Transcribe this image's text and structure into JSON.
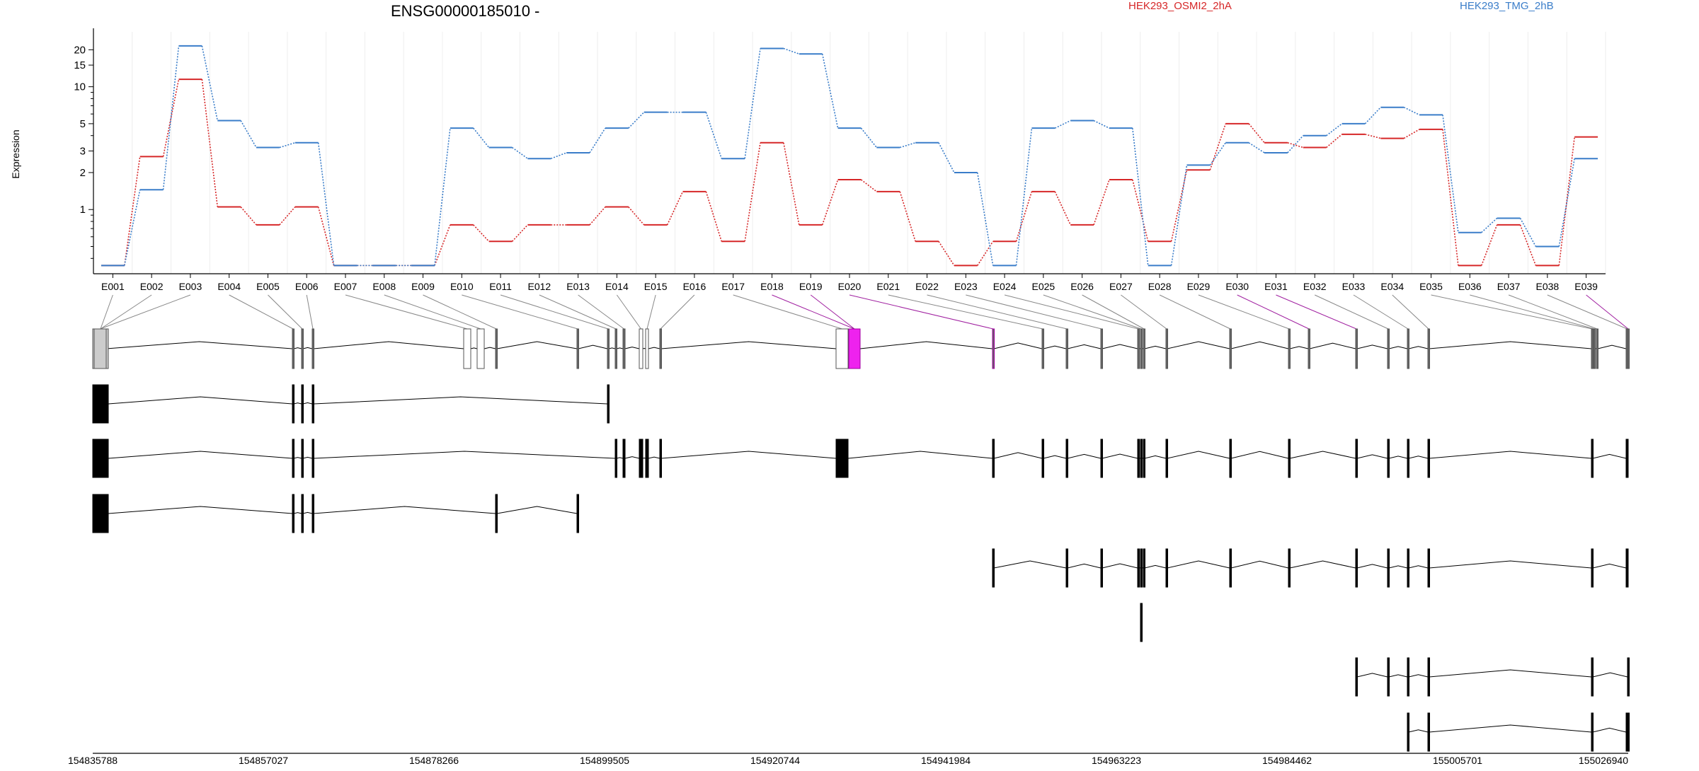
{
  "chart_data": {
    "type": "line",
    "title": "ENSG00000185010 -",
    "ylabel": "Expression",
    "xlabel": "",
    "yscale": "log",
    "yticks": [
      1,
      2,
      3,
      5,
      10,
      15,
      20
    ],
    "ylim": [
      0.3,
      28
    ],
    "grid": true,
    "legend_placement": "top-right",
    "categories": [
      "E001",
      "E002",
      "E003",
      "E004",
      "E005",
      "E006",
      "E007",
      "E008",
      "E009",
      "E010",
      "E011",
      "E012",
      "E013",
      "E014",
      "E015",
      "E016",
      "E017",
      "E018",
      "E019",
      "E020",
      "E021",
      "E022",
      "E023",
      "E024",
      "E025",
      "E026",
      "E027",
      "E028",
      "E029",
      "E030",
      "E031",
      "E032",
      "E033",
      "E034",
      "E035",
      "E036",
      "E037",
      "E038",
      "E039"
    ],
    "series": [
      {
        "name": "HEK293_OSMI2_2hA",
        "color": "#d62728",
        "values": [
          0.35,
          2.7,
          11.5,
          1.05,
          0.75,
          1.05,
          0.35,
          0.35,
          0.35,
          0.75,
          0.55,
          0.75,
          0.75,
          1.05,
          0.75,
          1.4,
          0.55,
          3.5,
          0.75,
          1.75,
          1.4,
          0.55,
          0.35,
          0.55,
          1.4,
          0.75,
          1.75,
          0.55,
          2.1,
          5.0,
          3.5,
          3.2,
          4.1,
          3.8,
          4.5,
          0.35,
          0.75,
          0.35,
          3.9
        ]
      },
      {
        "name": "HEK293_TMG_2hB",
        "color": "#3a7dc9",
        "values": [
          0.35,
          1.45,
          21.5,
          5.3,
          3.2,
          3.5,
          0.35,
          0.35,
          0.35,
          4.6,
          3.2,
          2.6,
          2.9,
          4.6,
          6.2,
          6.2,
          2.6,
          20.5,
          18.5,
          4.6,
          3.2,
          3.5,
          2.0,
          0.35,
          4.6,
          5.3,
          4.6,
          0.35,
          2.3,
          3.5,
          2.9,
          4.0,
          5.0,
          6.8,
          5.9,
          0.65,
          0.85,
          0.5,
          2.6
        ]
      }
    ],
    "genome_coordinates": [
      "154835788",
      "154857027",
      "154878266",
      "154899505",
      "154920744",
      "154941984",
      "154963223",
      "154984462",
      "155005701",
      "155026940"
    ],
    "highlighted_exon": "E020",
    "transcripts": [
      {
        "exons": [
          "E001",
          "E002",
          "E003",
          "E004",
          "E005",
          "E006",
          "E007",
          "E008",
          "E009",
          "E010",
          "E011",
          "E012",
          "E013",
          "E014",
          "E015",
          "E016",
          "E017",
          "E018",
          "E019",
          "E020",
          "E021",
          "E022",
          "E023",
          "E024",
          "E025",
          "E026",
          "E027",
          "E028",
          "E029",
          "E030",
          "E031",
          "E032",
          "E033",
          "E034",
          "E035",
          "E036",
          "E037",
          "E038",
          "E039"
        ]
      },
      {
        "exons": [
          "E002",
          "E004",
          "E005",
          "E006",
          "E011"
        ]
      },
      {
        "exons": [
          "E002",
          "E004",
          "E005",
          "E006",
          "E012",
          "E013",
          "E014",
          "E015",
          "E016",
          "E017",
          "E020",
          "E021",
          "E022",
          "E023",
          "E024",
          "E025",
          "E026",
          "E027",
          "E028",
          "E029",
          "E031",
          "E032",
          "E033",
          "E034",
          "E035",
          "E038"
        ]
      },
      {
        "exons": [
          "E002",
          "E004",
          "E005",
          "E006",
          "E009",
          "E010"
        ]
      },
      {
        "exons": [
          "E020",
          "E022",
          "E023",
          "E024",
          "E025",
          "E026",
          "E027",
          "E028",
          "E029",
          "E031",
          "E032",
          "E033",
          "E034",
          "E035",
          "E038"
        ]
      },
      {
        "exons": [
          "E025"
        ]
      },
      {
        "exons": [
          "E031",
          "E032",
          "E033",
          "E034",
          "E035",
          "E039"
        ]
      },
      {
        "exons": [
          "E033",
          "E034",
          "E035",
          "E038",
          "E039"
        ]
      }
    ]
  }
}
